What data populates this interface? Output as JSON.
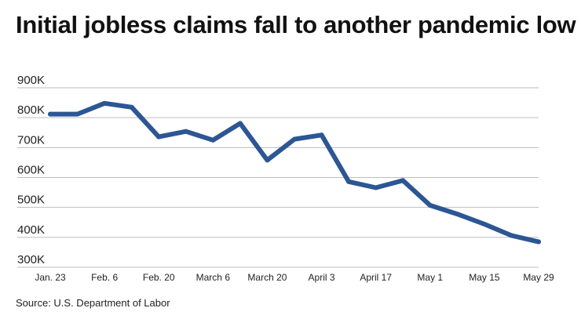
{
  "title": "Initial jobless claims fall to another pandemic low",
  "source": "Source: U.S. Department of Labor",
  "colors": {
    "line": "#2c5694",
    "grid": "#bdbdbd",
    "text": "#222222"
  },
  "chart_data": {
    "type": "line",
    "title": "Initial jobless claims fall to another pandemic low",
    "xlabel": "",
    "ylabel": "",
    "ylim": [
      300000,
      900000
    ],
    "yticks": [
      {
        "value": 900000,
        "label": "900K"
      },
      {
        "value": 800000,
        "label": "800K"
      },
      {
        "value": 700000,
        "label": "700K"
      },
      {
        "value": 600000,
        "label": "600K"
      },
      {
        "value": 500000,
        "label": "500K"
      },
      {
        "value": 400000,
        "label": "400K"
      },
      {
        "value": 300000,
        "label": "300K"
      }
    ],
    "xticks": [
      {
        "index": 0,
        "label": "Jan. 23"
      },
      {
        "index": 2,
        "label": "Feb. 6"
      },
      {
        "index": 4,
        "label": "Feb. 20"
      },
      {
        "index": 6,
        "label": "March 6"
      },
      {
        "index": 8,
        "label": "March 20"
      },
      {
        "index": 10,
        "label": "April 3"
      },
      {
        "index": 12,
        "label": "April 17"
      },
      {
        "index": 14,
        "label": "May 1"
      },
      {
        "index": 16,
        "label": "May 15"
      },
      {
        "index": 18,
        "label": "May 29"
      }
    ],
    "grid": true,
    "series": [
      {
        "values": [
          812000,
          812000,
          848000,
          835000,
          736000,
          754000,
          725000,
          781000,
          658000,
          728000,
          742000,
          586000,
          566000,
          590000,
          507000,
          478000,
          444000,
          406000,
          385000
        ]
      }
    ]
  }
}
